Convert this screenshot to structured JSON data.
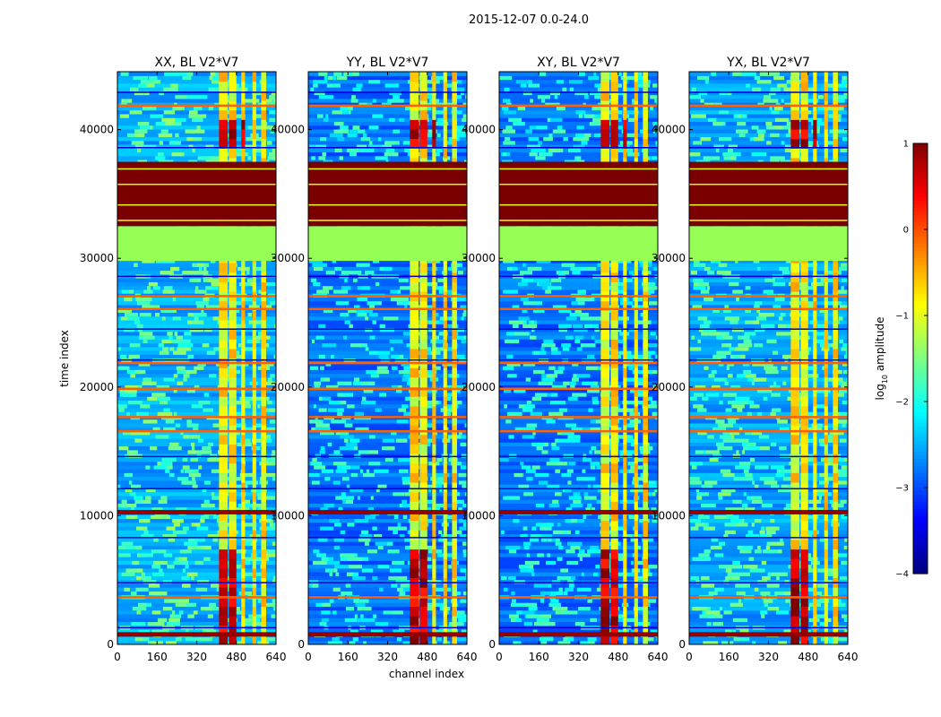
{
  "figure": {
    "suptitle": "2015-12-07 0.0-24.0"
  },
  "colors": {
    "saturated": "#7a0000",
    "flat_band": "#96ff55",
    "edge_band": "#ff8a00",
    "background_low": "#0a3cff"
  },
  "chart_data": {
    "type": "heatmap",
    "panels": [
      {
        "title": "XX, BL V2*V7"
      },
      {
        "title": "YY, BL V2*V7"
      },
      {
        "title": "XY, BL V2*V7"
      },
      {
        "title": "YX, BL V2*V7"
      }
    ],
    "xlabel": "channel index",
    "ylabel": "time index",
    "xlim": [
      0,
      640
    ],
    "ylim": [
      0,
      44500
    ],
    "xticks": [
      0,
      160,
      320,
      480,
      640
    ],
    "yticks": [
      0,
      10000,
      20000,
      30000,
      40000
    ],
    "features": {
      "flagged_saturated_block": [
        32500,
        37500
      ],
      "constant_band": [
        29800,
        32500
      ],
      "bright_rfi_channels": [
        [
          410,
          445
        ],
        [
          450,
          480
        ],
        [
          500,
          515
        ],
        [
          545,
          560
        ],
        [
          580,
          600
        ]
      ],
      "hot_time_rows": [
        800,
        3600,
        10300,
        16500,
        17600,
        19800,
        21800,
        26000,
        27000,
        41800
      ],
      "dark_time_rows": [
        1200,
        4700,
        8200,
        12000,
        14500,
        22000,
        24400,
        28500,
        38500,
        42800
      ]
    },
    "colorbar": {
      "label": "log",
      "label_sub": "10",
      "label_suffix": " amplitude",
      "range": [
        -4,
        1
      ],
      "ticks": [
        1,
        0,
        -1,
        -2,
        -3,
        -4
      ],
      "tick_labels": [
        "1",
        "0",
        "−1",
        "−2",
        "−3",
        "−4"
      ],
      "colormap": "jet"
    }
  }
}
